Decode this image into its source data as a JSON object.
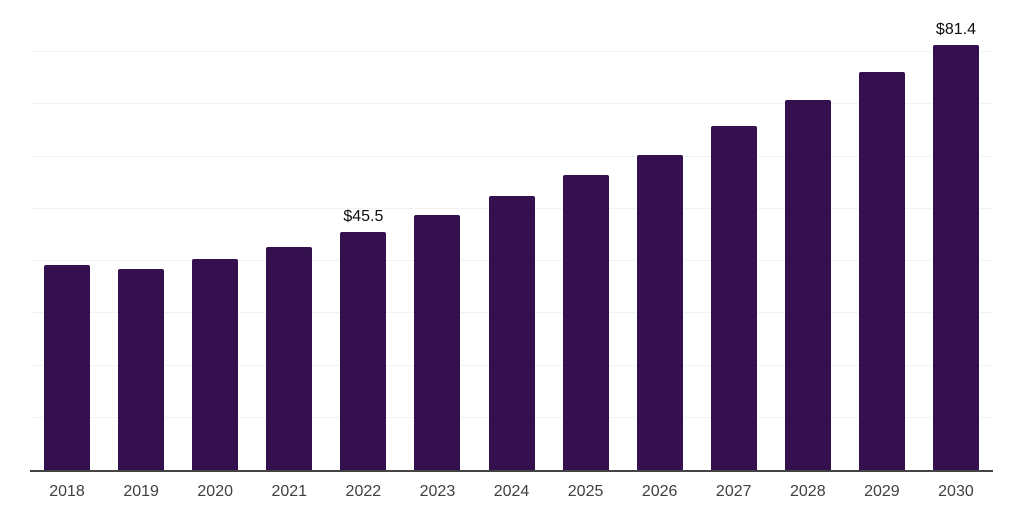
{
  "chart_data": {
    "type": "bar",
    "title": "",
    "xlabel": "",
    "ylabel": "",
    "categories": [
      "2018",
      "2019",
      "2020",
      "2021",
      "2022",
      "2023",
      "2024",
      "2025",
      "2026",
      "2027",
      "2028",
      "2029",
      "2030"
    ],
    "values": [
      39.2,
      38.5,
      40.4,
      42.8,
      45.5,
      48.8,
      52.4,
      56.4,
      60.4,
      65.8,
      70.8,
      76.3,
      81.4
    ],
    "value_labels": {
      "2022": "$45.5",
      "2030": "$81.4"
    },
    "ylim": [
      0,
      90
    ],
    "grid_step": 10,
    "grid": true,
    "legend": false,
    "colors": {
      "bar": "#34114E",
      "gridline": "#f2f2f2",
      "axis_line": "#434343",
      "tick_label": "#3f3f3f",
      "value_label": "#0e0e0e",
      "background": "#ffffff"
    }
  }
}
